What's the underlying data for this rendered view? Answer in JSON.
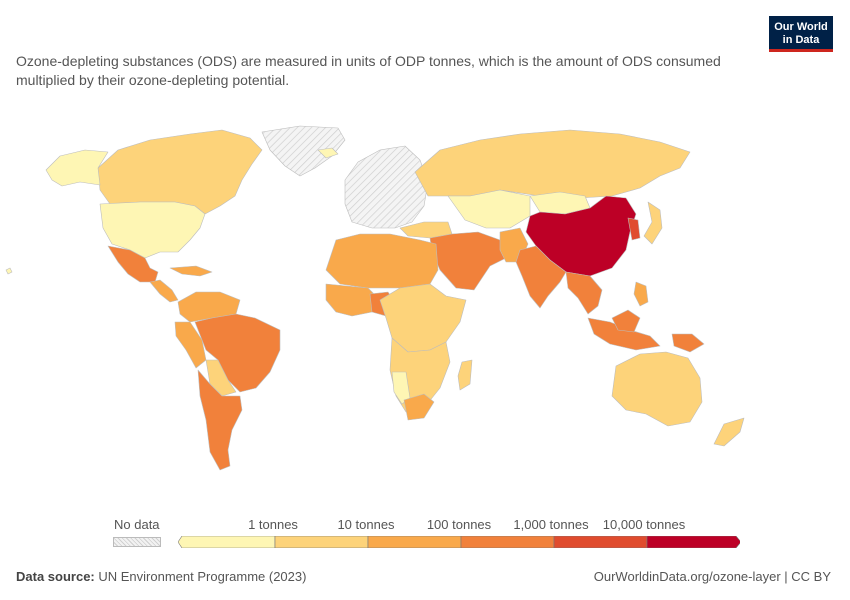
{
  "logo": {
    "line1": "Our World",
    "line2": "in Data"
  },
  "subtitle": "Ozone-depleting substances (ODS) are measured in units of ODP tonnes, which is the amount of ODS consumed multiplied by their ozone-depleting potential.",
  "legend": {
    "no_data_label": "No data",
    "ticks": [
      "1 tonnes",
      "10 tonnes",
      "100 tonnes",
      "1,000 tonnes",
      "10,000 tonnes"
    ],
    "bin_colors": [
      "#fef6b4",
      "#fdd37a",
      "#f9a94b",
      "#f1813b",
      "#e04c2e",
      "#bd0026"
    ]
  },
  "map_colors": {
    "no_data": "#e6e6e6",
    "china": "#bd0026",
    "korea": "#e04c2e",
    "high": "#f1813b",
    "mid": "#f9a94b",
    "lowmid": "#fdd37a",
    "low": "#fef6b4"
  },
  "footer": {
    "source_label": "Data source:",
    "source_value": "UN Environment Programme (2023)",
    "right": "OurWorldinData.org/ozone-layer | CC BY"
  }
}
